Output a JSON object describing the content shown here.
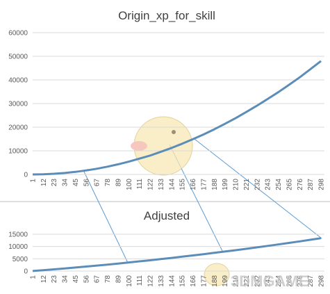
{
  "chart_data": [
    {
      "type": "line",
      "title": "Origin_xp_for_skill",
      "categories": [
        "1",
        "12",
        "23",
        "34",
        "45",
        "56",
        "67",
        "78",
        "89",
        "100",
        "111",
        "122",
        "133",
        "144",
        "155",
        "166",
        "177",
        "188",
        "199",
        "210",
        "221",
        "232",
        "243",
        "254",
        "265",
        "276",
        "287",
        "298"
      ],
      "values": [
        0,
        80,
        290,
        620,
        1100,
        1700,
        2400,
        3300,
        4300,
        5400,
        6700,
        8000,
        9600,
        11200,
        13000,
        14900,
        16900,
        19100,
        21400,
        23800,
        26400,
        29100,
        31900,
        34800,
        37900,
        41100,
        44500,
        48000
      ],
      "color": "#5b8db8",
      "ylim": [
        0,
        60000
      ],
      "yticks": [
        0,
        10000,
        20000,
        30000,
        40000,
        50000,
        60000
      ],
      "grid": true
    },
    {
      "type": "line",
      "title": "Adjusted",
      "categories": [
        "1",
        "12",
        "23",
        "34",
        "45",
        "56",
        "67",
        "78",
        "89",
        "100",
        "111",
        "122",
        "133",
        "144",
        "155",
        "166",
        "177",
        "188",
        "199",
        "210",
        "221",
        "232",
        "243",
        "254",
        "265",
        "276",
        "287",
        "298"
      ],
      "values": [
        30,
        370,
        720,
        1080,
        1450,
        1840,
        2230,
        2640,
        3070,
        3500,
        3950,
        4400,
        4870,
        5360,
        5850,
        6360,
        6880,
        7410,
        7950,
        8500,
        9070,
        9650,
        10240,
        10850,
        11460,
        12090,
        12730,
        13380
      ],
      "color": "#5b8db8",
      "ylim": [
        0,
        15000
      ],
      "yticks": [
        0,
        5000,
        10000,
        15000
      ],
      "grid": true,
      "watermark": "3DMGAME"
    }
  ]
}
